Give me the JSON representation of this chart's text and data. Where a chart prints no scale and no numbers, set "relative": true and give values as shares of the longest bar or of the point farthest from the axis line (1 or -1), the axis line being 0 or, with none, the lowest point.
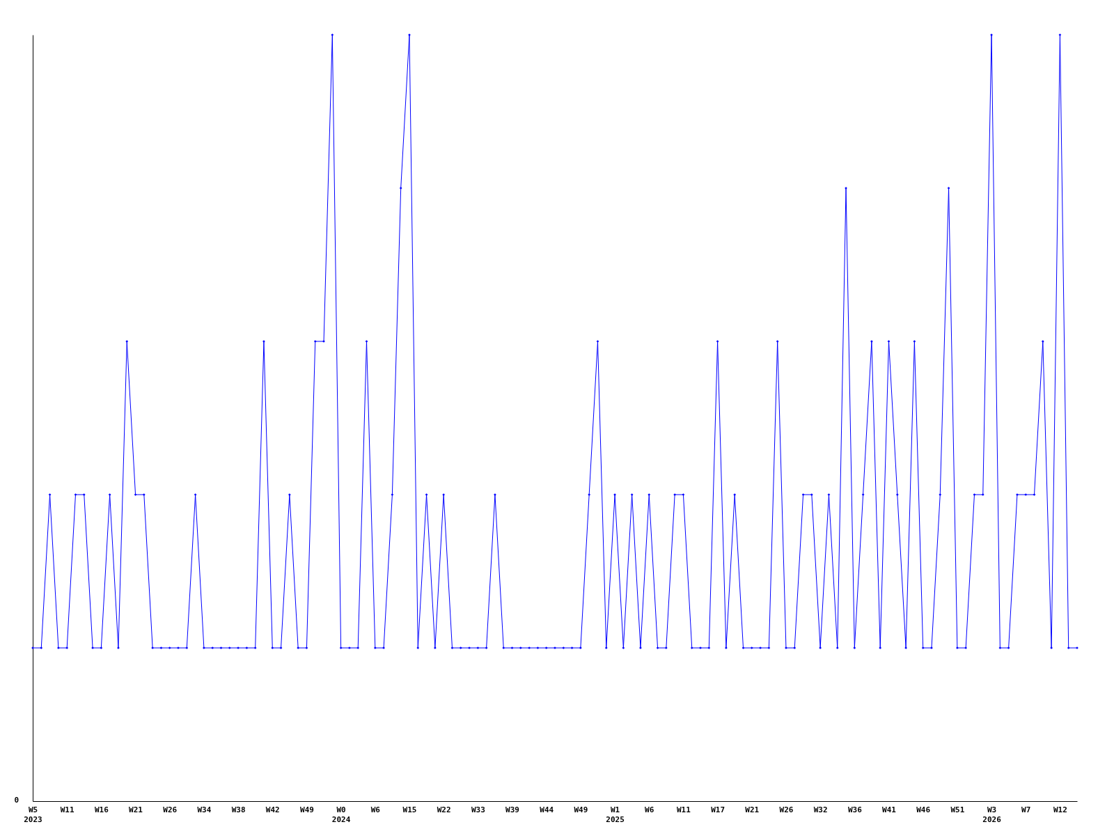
{
  "chart_data": {
    "type": "line",
    "relative": true,
    "marker": "diamond",
    "line_style": "solid",
    "annotations": [
      "0"
    ],
    "categories": [
      "W5\n2023",
      null,
      null,
      null,
      "W11",
      null,
      null,
      null,
      "W16",
      null,
      null,
      null,
      "W21",
      null,
      null,
      null,
      "W26",
      null,
      null,
      null,
      "W34",
      null,
      null,
      null,
      "W38",
      null,
      null,
      null,
      "W42",
      null,
      null,
      null,
      "W49",
      null,
      null,
      null,
      "W0\n2024",
      null,
      null,
      null,
      "W6",
      null,
      null,
      null,
      "W15",
      null,
      null,
      null,
      "W22",
      null,
      null,
      null,
      "W33",
      null,
      null,
      null,
      "W39",
      null,
      null,
      null,
      "W44",
      null,
      null,
      null,
      "W49",
      null,
      null,
      null,
      "W1\n2025",
      null,
      null,
      null,
      "W6",
      null,
      null,
      null,
      "W11",
      null,
      null,
      null,
      "W17",
      null,
      null,
      null,
      "W21",
      null,
      null,
      null,
      "W26",
      null,
      null,
      null,
      "W32",
      null,
      null,
      null,
      "W36",
      null,
      null,
      null,
      "W41",
      null,
      null,
      null,
      "W46",
      null,
      null,
      null,
      "W51",
      null,
      null,
      null,
      "W3\n2026",
      null,
      null,
      null,
      "W7",
      null,
      null,
      null,
      "W12",
      null,
      null
    ],
    "series": [
      {
        "color": "#0000ff",
        "values": [
          0.2,
          0.2,
          0.4,
          0.2,
          0.2,
          0.4,
          0.4,
          0.2,
          0.2,
          0.4,
          0.2,
          0.6,
          0.4,
          0.4,
          0.2,
          0.2,
          0.2,
          0.2,
          0.2,
          0.4,
          0.2,
          0.2,
          0.2,
          0.2,
          0.2,
          0.2,
          0.2,
          0.6,
          0.2,
          0.2,
          0.4,
          0.2,
          0.2,
          0.6,
          0.6,
          1,
          0.2,
          0.2,
          0.2,
          0.6,
          0.2,
          0.2,
          0.4,
          0.8,
          1,
          0.2,
          0.4,
          0.2,
          0.4,
          0.2,
          0.2,
          0.2,
          0.2,
          0.2,
          0.4,
          0.2,
          0.2,
          0.2,
          0.2,
          0.2,
          0.2,
          0.2,
          0.2,
          0.2,
          0.2,
          0.4,
          0.6,
          0.2,
          0.4,
          0.2,
          0.4,
          0.2,
          0.4,
          0.2,
          0.2,
          0.4,
          0.4,
          0.2,
          0.2,
          0.2,
          0.6,
          0.2,
          0.4,
          0.2,
          0.2,
          0.2,
          0.2,
          0.6,
          0.2,
          0.2,
          0.4,
          0.4,
          0.2,
          0.4,
          0.2,
          0.8,
          0.2,
          0.4,
          0.6,
          0.2,
          0.6,
          0.4,
          0.2,
          0.6,
          0.2,
          0.2,
          0.4,
          0.8,
          0.2,
          0.2,
          0.4,
          0.4,
          1,
          0.2,
          0.2,
          0.4,
          0.4,
          0.4,
          0.6,
          0.2,
          1,
          0.2,
          0.2
        ]
      }
    ]
  }
}
